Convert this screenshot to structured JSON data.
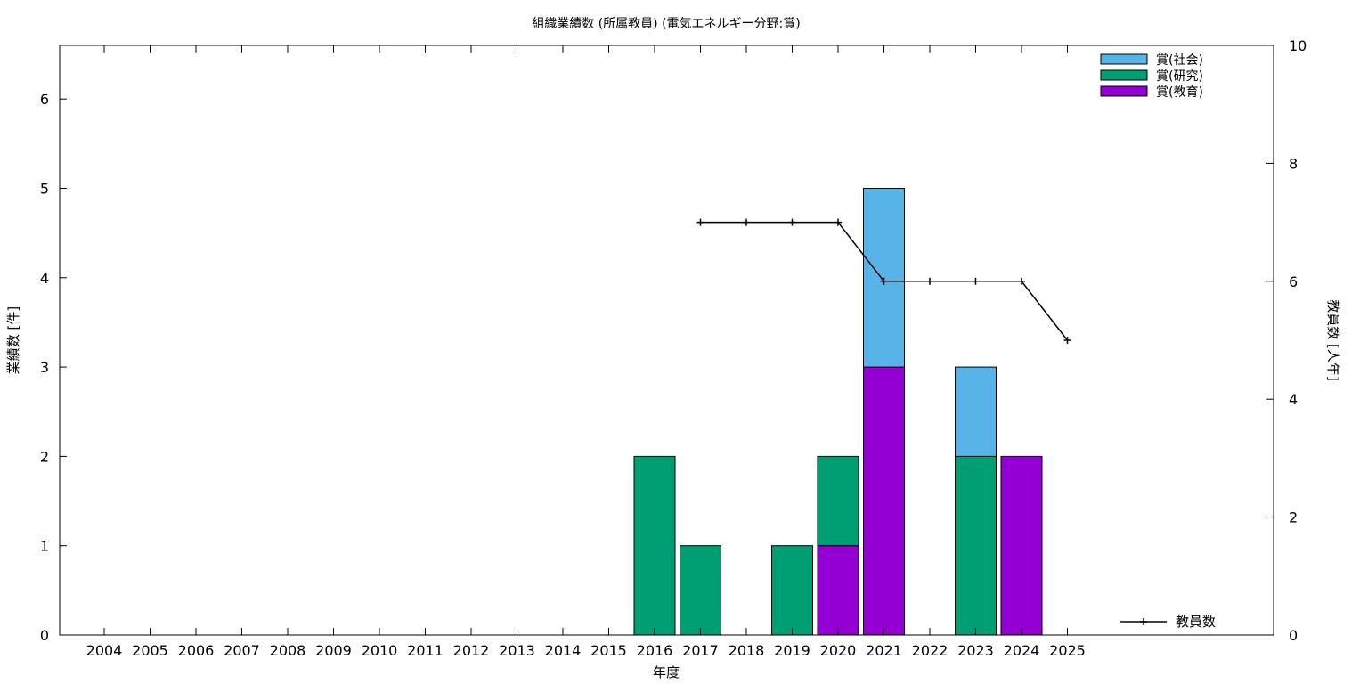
{
  "chart_data": {
    "type": "bar",
    "title": "組織業績数 (所属教員) (電気エネルギー分野:賞)",
    "xlabel": "年度",
    "ylabel": "業績数 [件]",
    "y2label": "教員数 [人年]",
    "categories": [
      "2004",
      "2005",
      "2006",
      "2007",
      "2008",
      "2009",
      "2010",
      "2011",
      "2012",
      "2013",
      "2014",
      "2015",
      "2016",
      "2017",
      "2018",
      "2019",
      "2020",
      "2021",
      "2022",
      "2023",
      "2024",
      "2025"
    ],
    "ylim": [
      0,
      6.6
    ],
    "y_ticks": [
      "0",
      "1",
      "2",
      "3",
      "4",
      "5",
      "6"
    ],
    "y2lim": [
      0,
      10
    ],
    "y2_ticks": [
      "0",
      "2",
      "4",
      "6",
      "8",
      "10"
    ],
    "stacked": true,
    "series": [
      {
        "name": "賞(教育)",
        "color": "#9400d3",
        "values": [
          0,
          0,
          0,
          0,
          0,
          0,
          0,
          0,
          0,
          0,
          0,
          0,
          0,
          0,
          0,
          0,
          1,
          3,
          0,
          0,
          2,
          0
        ]
      },
      {
        "name": "賞(研究)",
        "color": "#009e73",
        "values": [
          0,
          0,
          0,
          0,
          0,
          0,
          0,
          0,
          0,
          0,
          0,
          0,
          2,
          1,
          0,
          1,
          1,
          0,
          0,
          2,
          0,
          0
        ]
      },
      {
        "name": "賞(社会)",
        "color": "#56b4e9",
        "values": [
          0,
          0,
          0,
          0,
          0,
          0,
          0,
          0,
          0,
          0,
          0,
          0,
          0,
          0,
          0,
          0,
          0,
          2,
          0,
          1,
          0,
          0
        ]
      }
    ],
    "legend_order": [
      "賞(社会)",
      "賞(研究)",
      "賞(教育)"
    ],
    "legend_position": "top-right",
    "line_series": {
      "name": "教員数",
      "axis": "y2",
      "color": "#000000",
      "x": [
        "2017",
        "2018",
        "2019",
        "2020",
        "2021",
        "2022",
        "2023",
        "2024",
        "2025"
      ],
      "values": [
        7,
        7,
        7,
        7,
        6,
        6,
        6,
        6,
        5
      ]
    },
    "line_legend_position": "bottom-right",
    "grid": false
  }
}
